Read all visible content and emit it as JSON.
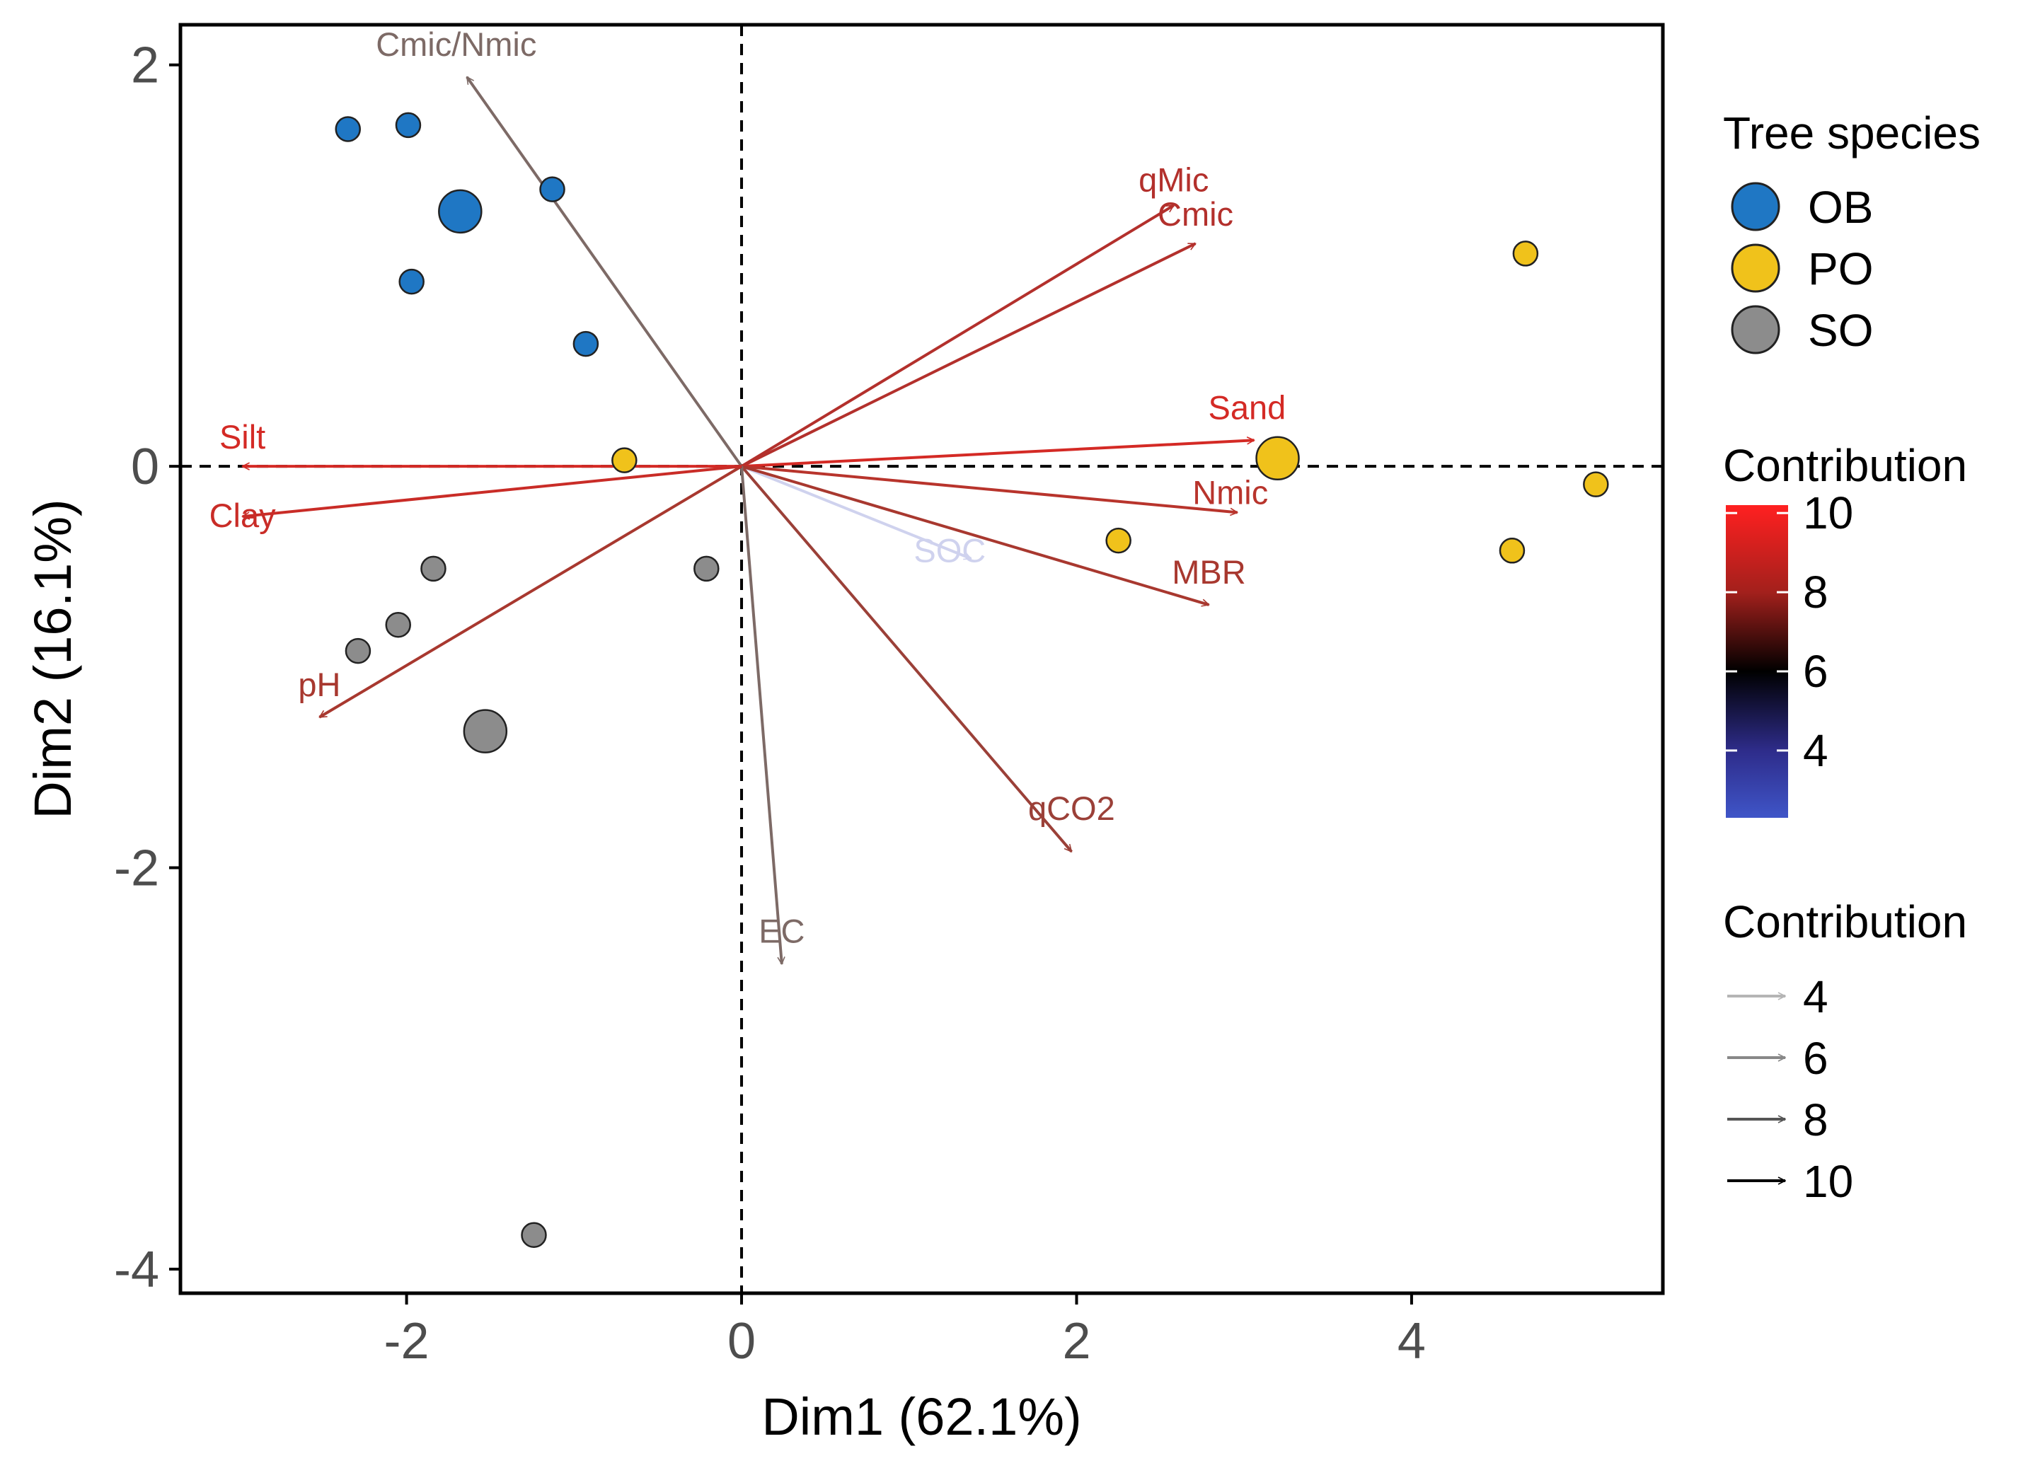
{
  "chart_data": {
    "type": "scatter",
    "title": "",
    "xlabel": "Dim1 (62.1%)",
    "ylabel": "Dim2 (16.1%)",
    "xlim": [
      -3.35,
      5.5
    ],
    "ylim": [
      -4.12,
      2.2
    ],
    "xticks": [
      -2,
      0,
      2,
      4
    ],
    "yticks": [
      -4,
      -2,
      0,
      2
    ],
    "xtick_labels": [
      "-2",
      "0",
      "2",
      "4"
    ],
    "ytick_labels": [
      "-4",
      "-2",
      "0",
      "2"
    ],
    "zero_lines": "dashed",
    "grid": false,
    "legend_position": "right",
    "groups": [
      {
        "name": "OB",
        "color": "#1f77c4"
      },
      {
        "name": "PO",
        "color": "#f0c21b"
      },
      {
        "name": "SO",
        "color": "#8c8c8c"
      }
    ],
    "points": [
      {
        "group": "OB",
        "x": -2.35,
        "y": 1.68,
        "size": "small"
      },
      {
        "group": "OB",
        "x": -1.99,
        "y": 1.7,
        "size": "small"
      },
      {
        "group": "OB",
        "x": -1.68,
        "y": 1.27,
        "size": "large"
      },
      {
        "group": "OB",
        "x": -1.13,
        "y": 1.38,
        "size": "small"
      },
      {
        "group": "OB",
        "x": -1.97,
        "y": 0.92,
        "size": "small"
      },
      {
        "group": "OB",
        "x": -0.93,
        "y": 0.61,
        "size": "small"
      },
      {
        "group": "PO",
        "x": -0.7,
        "y": 0.03,
        "size": "small"
      },
      {
        "group": "PO",
        "x": 3.2,
        "y": 0.04,
        "size": "large"
      },
      {
        "group": "PO",
        "x": 4.68,
        "y": 1.06,
        "size": "small"
      },
      {
        "group": "PO",
        "x": 5.1,
        "y": -0.09,
        "size": "small"
      },
      {
        "group": "PO",
        "x": 2.25,
        "y": -0.37,
        "size": "small"
      },
      {
        "group": "PO",
        "x": 4.6,
        "y": -0.42,
        "size": "small"
      },
      {
        "group": "SO",
        "x": -0.21,
        "y": -0.51,
        "size": "small"
      },
      {
        "group": "SO",
        "x": -1.84,
        "y": -0.51,
        "size": "small"
      },
      {
        "group": "SO",
        "x": -2.05,
        "y": -0.79,
        "size": "small"
      },
      {
        "group": "SO",
        "x": -2.29,
        "y": -0.92,
        "size": "small"
      },
      {
        "group": "SO",
        "x": -1.53,
        "y": -1.32,
        "size": "large"
      },
      {
        "group": "SO",
        "x": -1.24,
        "y": -3.83,
        "size": "small"
      }
    ],
    "vectors": [
      {
        "label": "Cmic/Nmic",
        "x": -1.64,
        "y": 1.94,
        "contribution": 6.5,
        "color": "#7d6a66"
      },
      {
        "label": "qMic",
        "x": 2.58,
        "y": 1.3,
        "contribution": 8.3,
        "color": "#b3302c"
      },
      {
        "label": "Cmic",
        "x": 2.71,
        "y": 1.11,
        "contribution": 8.3,
        "color": "#b3302c"
      },
      {
        "label": "Sand",
        "x": 3.06,
        "y": 0.13,
        "contribution": 9.7,
        "color": "#d42a25"
      },
      {
        "label": "Nmic",
        "x": 2.96,
        "y": -0.23,
        "contribution": 8.3,
        "color": "#b8342c"
      },
      {
        "label": "SOC",
        "x": 1.37,
        "y": -0.46,
        "contribution": 3.5,
        "color": "#cfd2ee"
      },
      {
        "label": "MBR",
        "x": 2.79,
        "y": -0.69,
        "contribution": 8.0,
        "color": "#a8382f"
      },
      {
        "label": "qCO2",
        "x": 1.97,
        "y": -1.92,
        "contribution": 7.3,
        "color": "#9b4038"
      },
      {
        "label": "EC",
        "x": 0.24,
        "y": -2.48,
        "contribution": 6.5,
        "color": "#7d6a66"
      },
      {
        "label": "pH",
        "x": -2.52,
        "y": -1.25,
        "contribution": 8.0,
        "color": "#a8382f"
      },
      {
        "label": "Silt",
        "x": -2.98,
        "y": 0.0,
        "contribution": 9.8,
        "color": "#d42a25"
      },
      {
        "label": "Clay",
        "x": -2.98,
        "y": -0.25,
        "contribution": 9.8,
        "color": "#c92c27"
      }
    ],
    "legend_species": {
      "title": "Tree species",
      "entries": [
        "OB",
        "PO",
        "SO"
      ]
    },
    "legend_color": {
      "title": "Contribution",
      "range": [
        2.3,
        10.2
      ],
      "ticks": [
        10,
        8,
        6,
        4
      ],
      "tick_labels": [
        "10",
        "8",
        "6",
        "4"
      ],
      "gradient": [
        {
          "value": 2.3,
          "color": "#3f55c8"
        },
        {
          "value": 4,
          "color": "#2e2c8a"
        },
        {
          "value": 6,
          "color": "#000000"
        },
        {
          "value": 8,
          "color": "#a3201c"
        },
        {
          "value": 10.2,
          "color": "#ff2020"
        }
      ]
    },
    "legend_alpha": {
      "title": "Contribution",
      "entries": [
        {
          "label": "4",
          "color": "#b5b5b5"
        },
        {
          "label": "6",
          "color": "#888888"
        },
        {
          "label": "8",
          "color": "#555555"
        },
        {
          "label": "10",
          "color": "#000000"
        }
      ]
    }
  }
}
